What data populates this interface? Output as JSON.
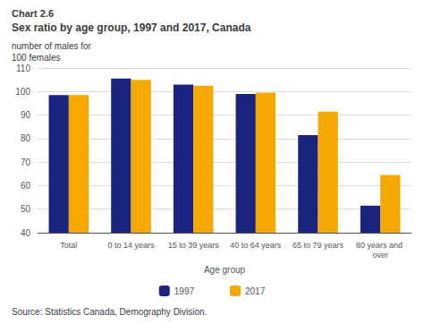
{
  "chart_data": {
    "type": "bar",
    "title": "Sex ratio by age group, 1997 and 2017, Canada",
    "ylabel": "number of males for\n100 females",
    "xlabel": "Age group",
    "annotations": [
      "Chart 2.6",
      "Source: Statistics Canada, Demography Division."
    ],
    "categories": [
      "Total",
      "0 to 14 years",
      "15 to 39 years",
      "40 to 64 years",
      "65 to 79 years",
      "80 years and over"
    ],
    "series": [
      {
        "name": "1997",
        "color": "#1a237e",
        "values": [
          98.5,
          105.5,
          103.0,
          99.0,
          81.5,
          51.5
        ]
      },
      {
        "name": "2017",
        "color": "#F5A800",
        "values": [
          98.5,
          105.0,
          102.5,
          99.5,
          91.5,
          64.5
        ]
      }
    ],
    "ylim": [
      40,
      110
    ],
    "yticks": [
      40,
      50,
      60,
      70,
      80,
      90,
      100,
      110
    ],
    "grid": true,
    "legend": "bottom"
  }
}
